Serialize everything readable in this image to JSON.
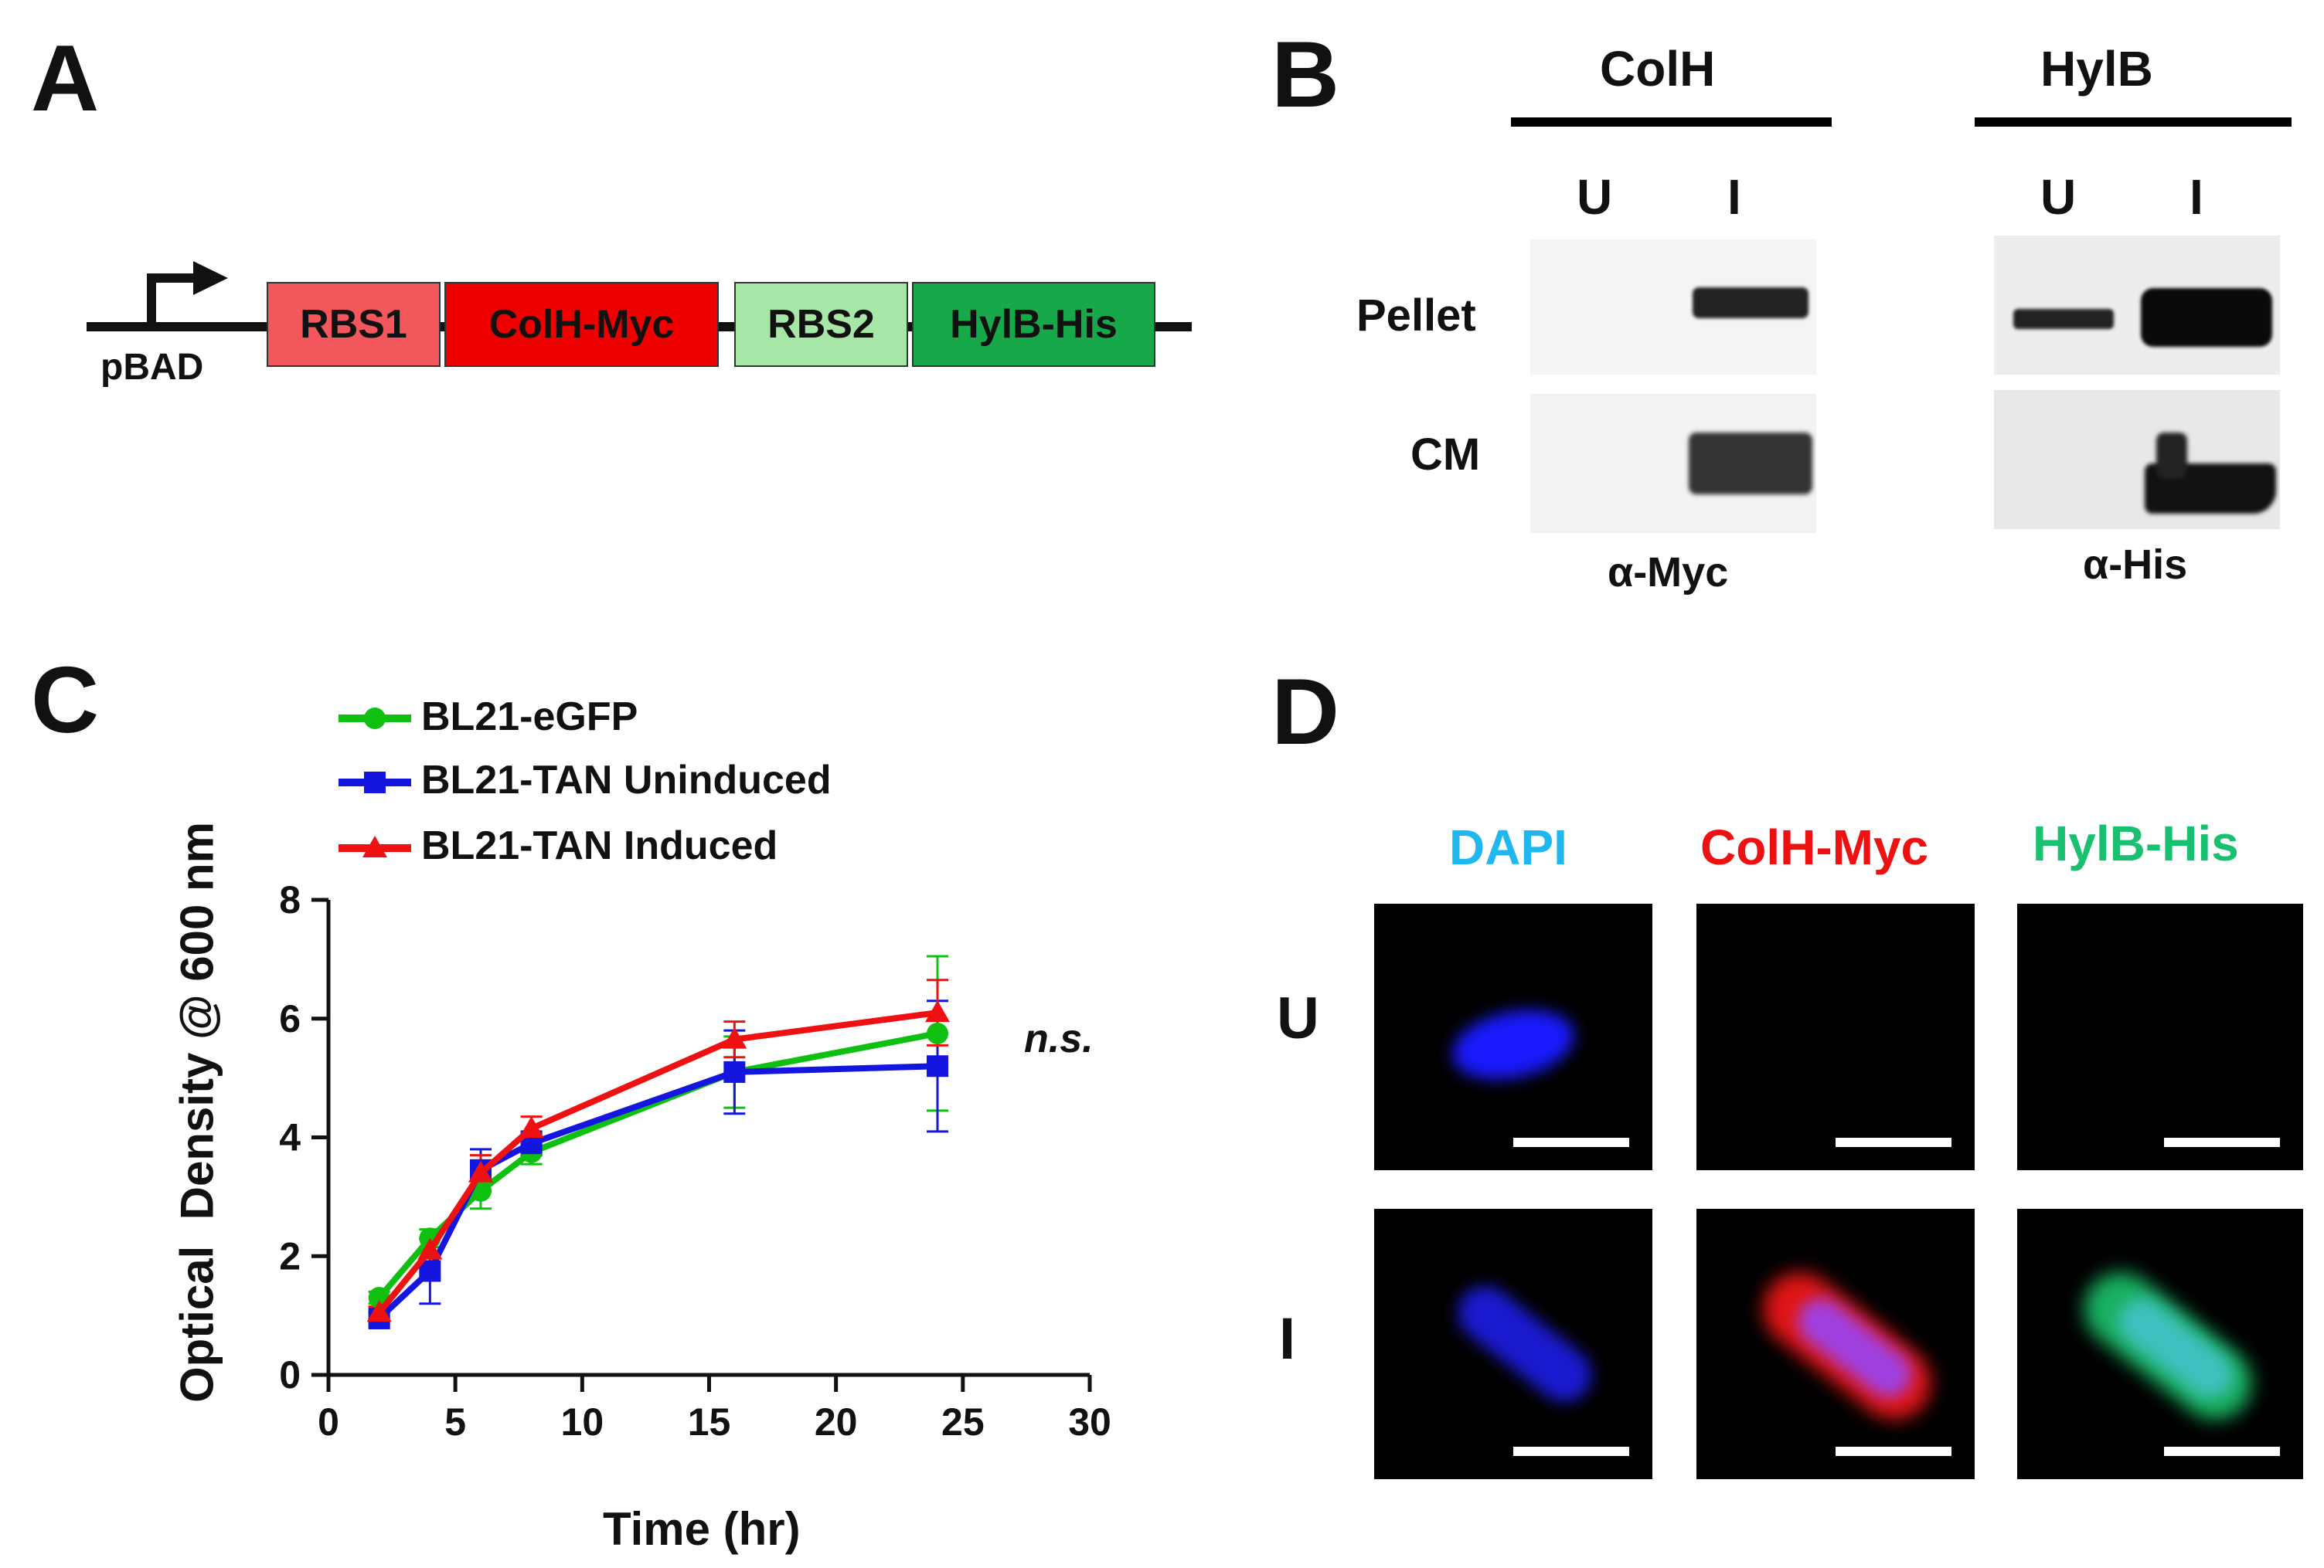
{
  "panels": {
    "a": {
      "letter": "A",
      "promoter": "pBAD",
      "segments": [
        {
          "label": "RBS1",
          "color": "#f2585b"
        },
        {
          "label": "ColH-Myc",
          "color": "#ee0000"
        },
        {
          "label": "RBS2",
          "color": "#a6e6a6"
        },
        {
          "label": "HylB-His",
          "color": "#17a84a"
        }
      ]
    },
    "b": {
      "letter": "B",
      "groups": [
        {
          "title": "ColH",
          "lanes": [
            "U",
            "I"
          ],
          "antibody": "α-Myc"
        },
        {
          "title": "HylB",
          "lanes": [
            "U",
            "I"
          ],
          "antibody": "α-His"
        }
      ],
      "rows": [
        "Pellet",
        "CM"
      ]
    },
    "c": {
      "letter": "C",
      "ns": "n.s."
    },
    "d": {
      "letter": "D",
      "columns": [
        {
          "label": "DAPI",
          "color": "#1fb7f0"
        },
        {
          "label": "ColH-Myc",
          "color": "#ee1111"
        },
        {
          "label": "HylB-His",
          "color": "#19c070"
        }
      ],
      "rows": [
        "U",
        "I"
      ]
    }
  },
  "chart_data": {
    "type": "line",
    "xlabel": "Time (hr)",
    "ylabel": "Optical  Density @ 600 nm",
    "xlim": [
      0,
      30
    ],
    "ylim": [
      0,
      8
    ],
    "xticks": [
      0,
      5,
      10,
      15,
      20,
      25,
      30
    ],
    "yticks": [
      0,
      2,
      4,
      6,
      8
    ],
    "x": [
      2,
      4,
      6,
      8,
      16,
      24
    ],
    "legend_position": "top-left",
    "series": [
      {
        "name": "BL21-eGFP",
        "color": "#10c010",
        "marker": "circle",
        "values": [
          1.3,
          2.3,
          3.1,
          3.75,
          5.1,
          5.75
        ],
        "errors": [
          0.1,
          0.15,
          0.3,
          0.2,
          0.6,
          1.3
        ]
      },
      {
        "name": "BL21-TAN Uninduced",
        "color": "#1515e0",
        "marker": "square",
        "values": [
          0.95,
          1.75,
          3.45,
          3.9,
          5.1,
          5.2
        ],
        "errors": [
          0.1,
          0.55,
          0.35,
          0.2,
          0.7,
          1.1
        ]
      },
      {
        "name": "BL21-TAN Induced",
        "color": "#ee1111",
        "marker": "triangle",
        "values": [
          1.05,
          2.1,
          3.4,
          4.15,
          5.65,
          6.1
        ],
        "errors": [
          0.1,
          0.2,
          0.3,
          0.2,
          0.3,
          0.55
        ]
      }
    ]
  }
}
